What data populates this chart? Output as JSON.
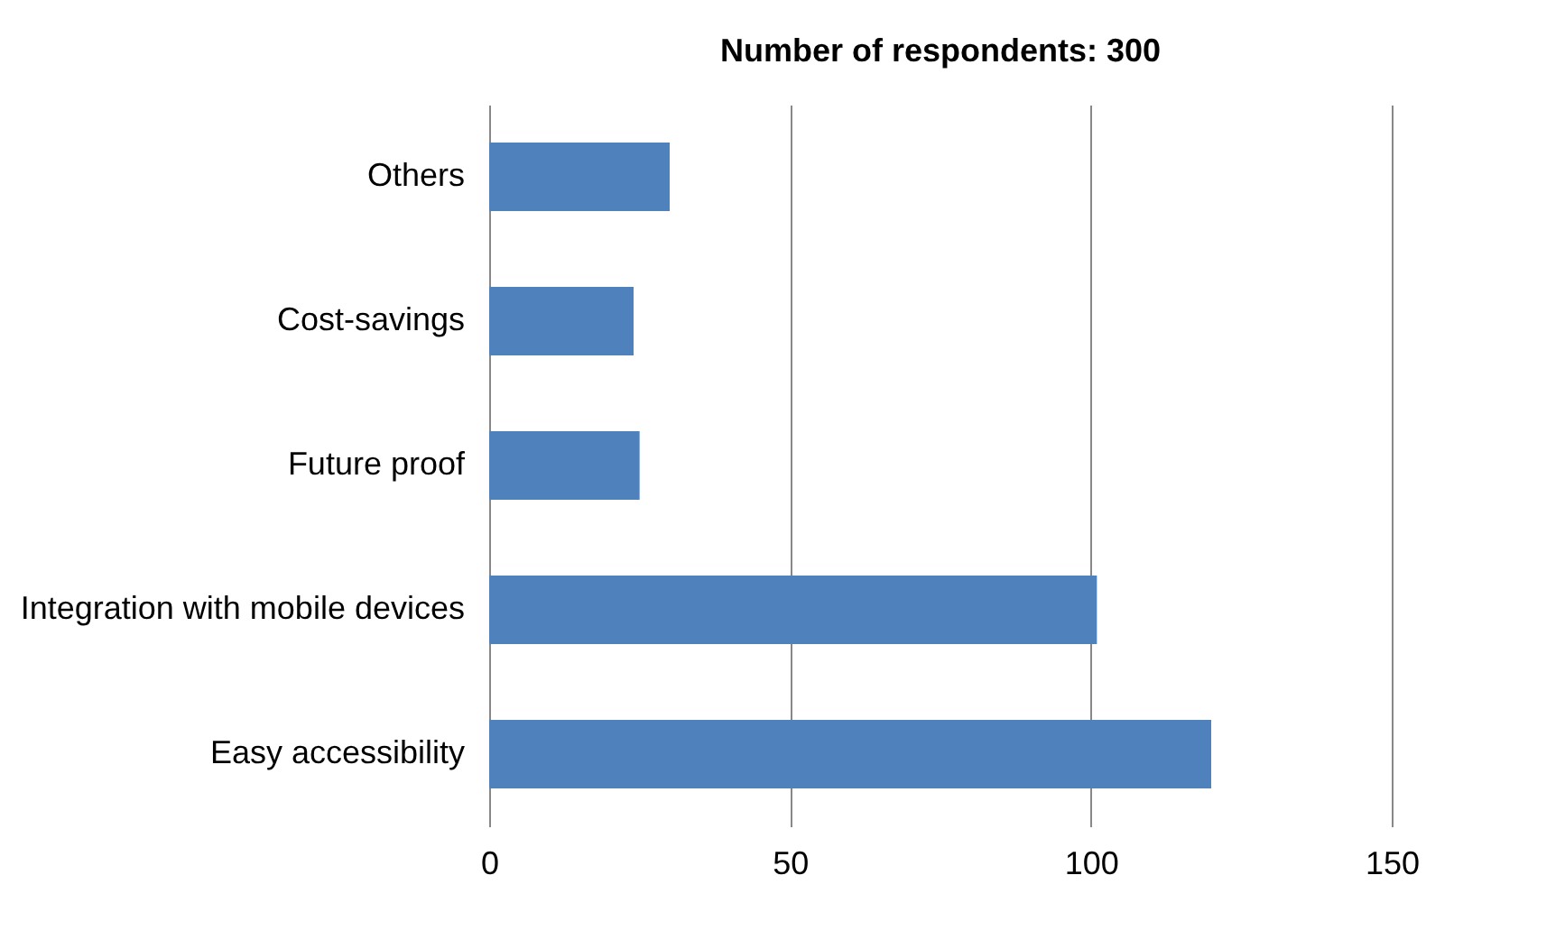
{
  "chart_data": {
    "type": "bar",
    "orientation": "horizontal",
    "title": "Number of respondents: 300",
    "categories": [
      "Others",
      "Cost-savings",
      "Future proof",
      "Integration with mobile devices",
      "Easy accessibility"
    ],
    "values": [
      30,
      24,
      25,
      101,
      120
    ],
    "color": "#4f81bd",
    "xlim": [
      0,
      150
    ],
    "xticks": [
      0,
      50,
      100,
      150
    ],
    "grid": "x"
  }
}
